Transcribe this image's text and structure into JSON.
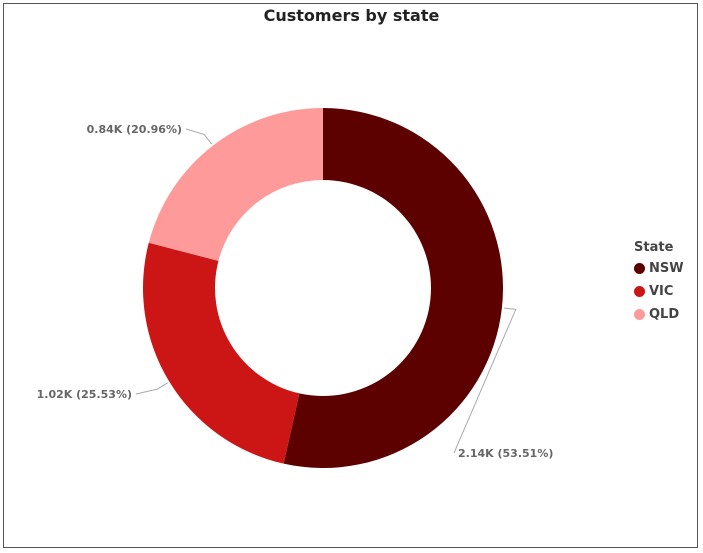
{
  "chart_data": {
    "type": "pie",
    "title": "Customers by state",
    "hole": 0.6,
    "legend": {
      "title": "State",
      "position": "right"
    },
    "slices": [
      {
        "name": "NSW",
        "value": 2.14,
        "percent": 53.51,
        "label": "2.14K (53.51%)",
        "color": "#5c0000"
      },
      {
        "name": "VIC",
        "value": 1.02,
        "percent": 25.53,
        "label": "1.02K (25.53%)",
        "color": "#cc1515"
      },
      {
        "name": "QLD",
        "value": 0.84,
        "percent": 20.96,
        "label": "0.84K (20.96%)",
        "color": "#ff9a9a"
      }
    ]
  }
}
